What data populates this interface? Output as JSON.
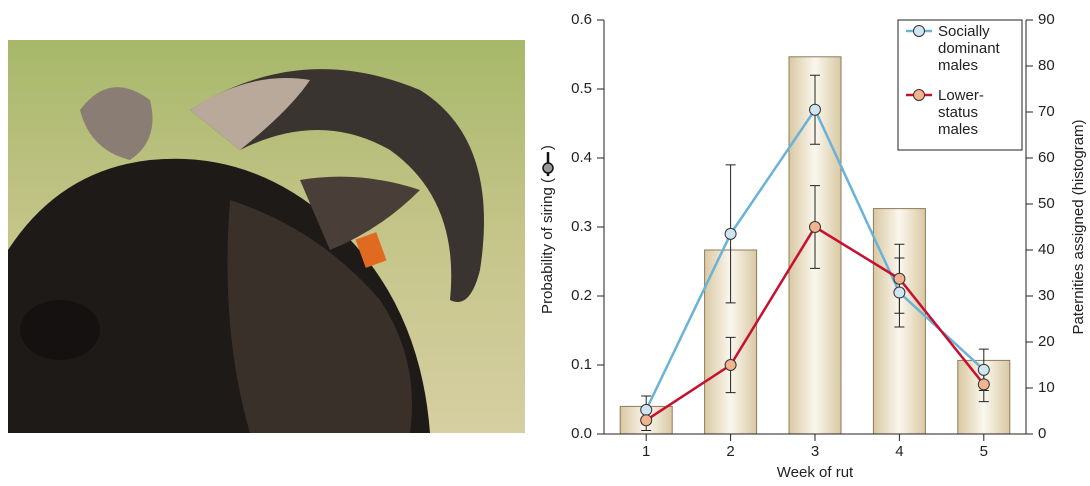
{
  "chart_data": {
    "type": "bar-line",
    "xlabel": "Week of rut",
    "ylabel": "Probability of siring (",
    "ylabel_end": ")",
    "y2label": "Paternities assigned (histogram)",
    "categories": [
      "1",
      "2",
      "3",
      "4",
      "5"
    ],
    "ylim": [
      0,
      0.6
    ],
    "yticks": [
      {
        "value": 0,
        "label": "0.0"
      },
      0.1,
      0.2,
      0.3,
      0.4,
      0.5,
      0.6
    ],
    "y2lim": [
      0,
      90
    ],
    "y2ticks": [
      0,
      10,
      20,
      30,
      40,
      50,
      60,
      70,
      80,
      90
    ],
    "histogram": {
      "axis": "y2",
      "values": [
        6,
        40,
        82,
        49,
        16
      ]
    },
    "series": [
      {
        "name": "Socially dominant males",
        "color": "#6ab2d8",
        "marker": "#cfe6f2",
        "values": [
          0.035,
          0.29,
          0.47,
          0.205,
          0.093
        ],
        "errors": [
          0.02,
          0.1,
          0.05,
          0.05,
          0.03
        ]
      },
      {
        "name": "Lower-status males",
        "color": "#c8102e",
        "marker": "#f2b48e",
        "values": [
          0.02,
          0.1,
          0.3,
          0.225,
          0.072
        ],
        "errors": [
          0.015,
          0.04,
          0.06,
          0.05,
          0.025
        ]
      }
    ],
    "legend": "upper right"
  }
}
